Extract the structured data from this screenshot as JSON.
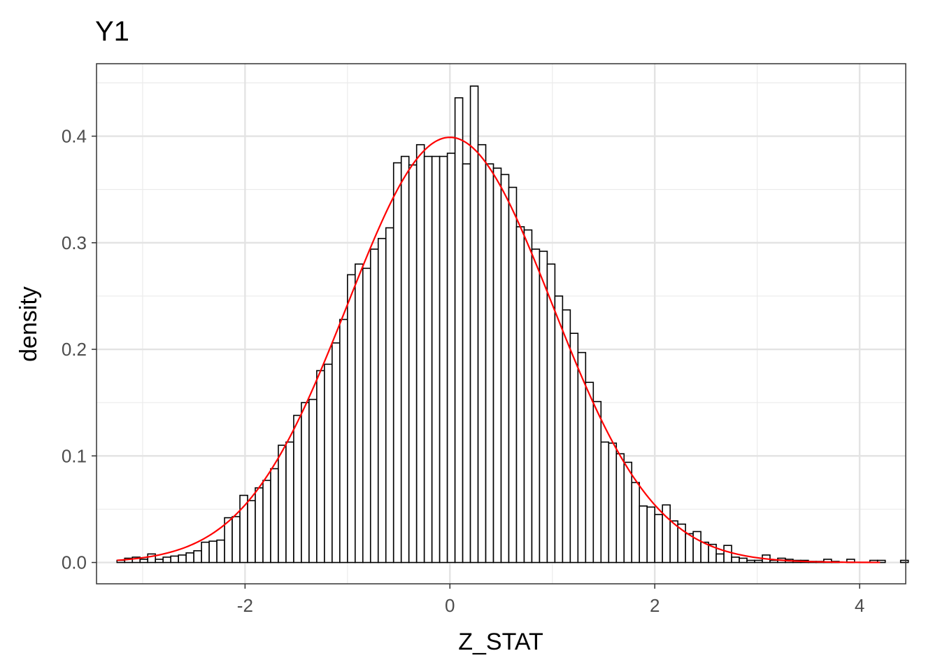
{
  "chart_data": {
    "type": "bar",
    "title": "Y1",
    "xlabel": "Z_STAT",
    "ylabel": "density",
    "xlim": [
      -3.45,
      4.45
    ],
    "ylim": [
      -0.02,
      0.468
    ],
    "x_ticks": [
      -2,
      0,
      2,
      4
    ],
    "x_tick_labels": [
      "-2",
      "0",
      "2",
      "4"
    ],
    "y_ticks": [
      0.0,
      0.1,
      0.2,
      0.3,
      0.4
    ],
    "y_tick_labels": [
      "0.0",
      "0.1",
      "0.2",
      "0.3",
      "0.4"
    ],
    "grid": true,
    "bin_start": -3.25,
    "bin_width": 0.075,
    "values": [
      0.002,
      0.004,
      0.005,
      0.003,
      0.008,
      0.003,
      0.005,
      0.006,
      0.007,
      0.009,
      0.011,
      0.019,
      0.02,
      0.021,
      0.042,
      0.043,
      0.063,
      0.058,
      0.07,
      0.077,
      0.088,
      0.11,
      0.113,
      0.138,
      0.15,
      0.153,
      0.18,
      0.186,
      0.206,
      0.228,
      0.27,
      0.28,
      0.276,
      0.294,
      0.304,
      0.314,
      0.375,
      0.381,
      0.373,
      0.392,
      0.381,
      0.381,
      0.381,
      0.384,
      0.436,
      0.374,
      0.447,
      0.392,
      0.374,
      0.37,
      0.364,
      0.352,
      0.315,
      0.312,
      0.294,
      0.292,
      0.28,
      0.25,
      0.237,
      0.215,
      0.197,
      0.169,
      0.151,
      0.113,
      0.112,
      0.102,
      0.094,
      0.075,
      0.053,
      0.052,
      0.045,
      0.054,
      0.039,
      0.036,
      0.027,
      0.029,
      0.019,
      0.017,
      0.008,
      0.016,
      0.005,
      0.004,
      0.002,
      0.002,
      0.007,
      0.002,
      0.004,
      0.003,
      0.002,
      0.002,
      0.001,
      0.001,
      0.003,
      0.001,
      0.0,
      0.003,
      0.0,
      0.0,
      0.002,
      0.002,
      0.0,
      0.0,
      0.002
    ],
    "curve": {
      "type": "normal-density",
      "mean": 0,
      "sd": 1,
      "x_range": [
        -3.25,
        4.2
      ],
      "color": "#ff0000"
    },
    "bar_fill": "#ffffff",
    "bar_outline": "#000000"
  }
}
